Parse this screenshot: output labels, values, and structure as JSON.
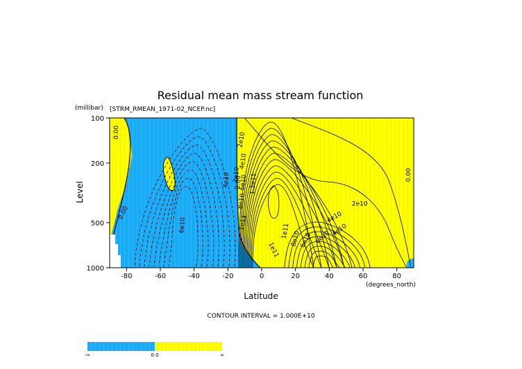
{
  "chart_data": {
    "type": "contour",
    "title": "Residual mean mass stream function",
    "subtitle": "[STRM_RMEAN_1971-02_NCEP.nc]",
    "ylabel": "Level",
    "yunits": "(millibar)",
    "xlabel": "Latitude",
    "xunits": "(degrees_north)",
    "footer": "CONTOUR INTERVAL = 1.000E+10",
    "x_ticks": [
      {
        "value": -80,
        "label": "-80"
      },
      {
        "value": -60,
        "label": "-60"
      },
      {
        "value": -40,
        "label": "-40"
      },
      {
        "value": -20,
        "label": "-20"
      },
      {
        "value": 0,
        "label": "0"
      },
      {
        "value": 20,
        "label": "20"
      },
      {
        "value": 40,
        "label": "40"
      },
      {
        "value": 60,
        "label": "60"
      },
      {
        "value": 80,
        "label": "80"
      }
    ],
    "y_ticks": [
      {
        "value": 100,
        "label": "100"
      },
      {
        "value": 200,
        "label": "200"
      },
      {
        "value": 500,
        "label": "500"
      },
      {
        "value": 1000,
        "label": "1000"
      }
    ],
    "xlim": [
      -90,
      90
    ],
    "ylim": [
      1000,
      100
    ],
    "y_scale": "log",
    "contour_interval": 10000000000.0,
    "colors": {
      "negative": "#1aaaf6",
      "positive": "#ffff00",
      "contour": "#000000"
    },
    "contour_labels": [
      {
        "text": "0.00",
        "lat": -86,
        "p": 125,
        "rot": -90
      },
      {
        "text": "0.00",
        "lat": -82,
        "p": 430,
        "rot": -65
      },
      {
        "text": "4e10",
        "lat": -21,
        "p": 260,
        "rot": -85
      },
      {
        "text": "2e10",
        "lat": -15,
        "p": 240,
        "rot": -85
      },
      {
        "text": "0.00",
        "lat": -14,
        "p": 270,
        "rot": -85
      },
      {
        "text": "6e10",
        "lat": -47,
        "p": 520,
        "rot": -85
      },
      {
        "text": "2e10",
        "lat": -12,
        "p": 140,
        "rot": -80
      },
      {
        "text": "4e10",
        "lat": -11,
        "p": 195,
        "rot": -80
      },
      {
        "text": "6e10",
        "lat": -11,
        "p": 270,
        "rot": -80
      },
      {
        "text": "8e10",
        "lat": -12,
        "p": 360,
        "rot": -80
      },
      {
        "text": "1.2e11",
        "lat": -5,
        "p": 275,
        "rot": -85
      },
      {
        "text": "1e11",
        "lat": -11,
        "p": 500,
        "rot": -80
      },
      {
        "text": "1e11",
        "lat": 14,
        "p": 570,
        "rot": -80
      },
      {
        "text": "8e10",
        "lat": 20,
        "p": 640,
        "rot": -75
      },
      {
        "text": "6e10",
        "lat": 26,
        "p": 655,
        "rot": -65
      },
      {
        "text": "6e10",
        "lat": 36,
        "p": 625,
        "rot": -40
      },
      {
        "text": "4e10",
        "lat": 43,
        "p": 460,
        "rot": -30
      },
      {
        "text": "4e10",
        "lat": 46,
        "p": 560,
        "rot": -35
      },
      {
        "text": "2e10",
        "lat": 58,
        "p": 375,
        "rot": 0
      },
      {
        "text": "1e11",
        "lat": 7,
        "p": 760,
        "rot": 65
      },
      {
        "text": "0.00",
        "lat": 87,
        "p": 240,
        "rot": -90
      }
    ],
    "colorbar_labels": [
      "-∞",
      "0.0",
      "∞"
    ]
  }
}
